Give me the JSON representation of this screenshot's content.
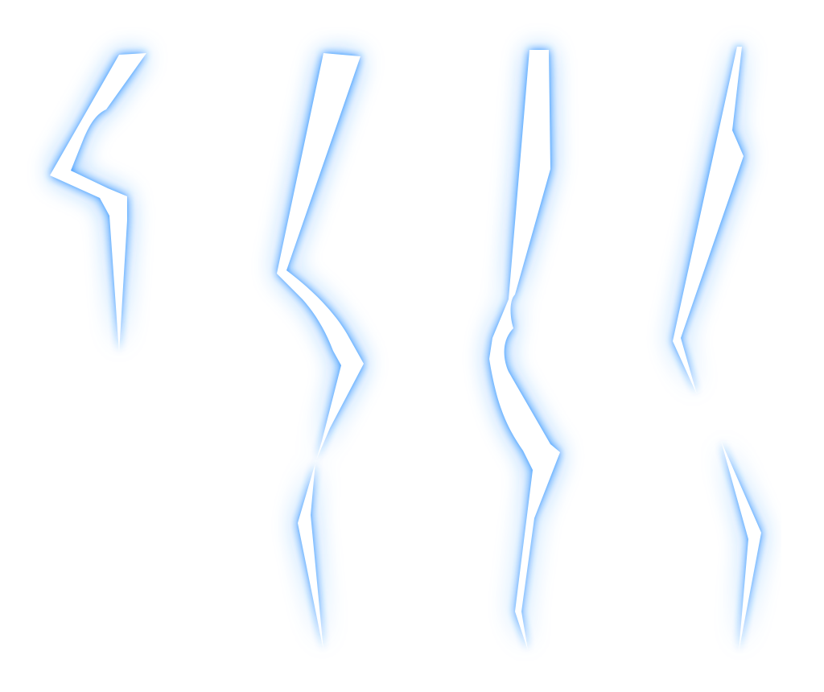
{
  "scene": {
    "subject": "lightning-bolt-sprites",
    "background_color": "#ffffff",
    "core_color": "#ffffff",
    "glow_color": "#1e88ff",
    "bolts": [
      {
        "id": "bolt-1"
      },
      {
        "id": "bolt-2"
      },
      {
        "id": "bolt-3"
      },
      {
        "id": "bolt-4-upper"
      },
      {
        "id": "bolt-4-lower"
      }
    ]
  }
}
